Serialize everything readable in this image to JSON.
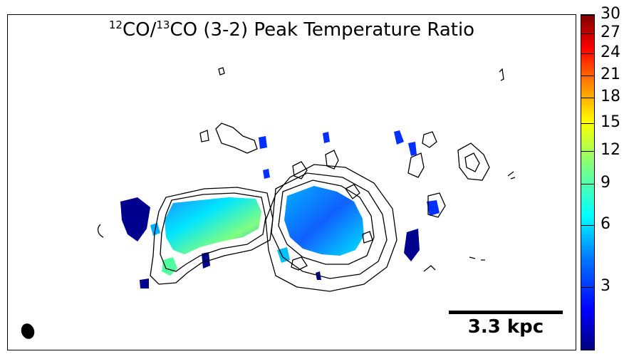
{
  "title": {
    "iso1": "12",
    "part1": "CO/",
    "iso2": "13",
    "part2": "CO (3-2) Peak Temperature Ratio"
  },
  "scale_bar": {
    "label": "3.3 kpc"
  },
  "colorbar": {
    "ticks": [
      {
        "label": "30",
        "value": 30,
        "frac": 0.0
      },
      {
        "label": "27",
        "value": 27,
        "frac": 0.055
      },
      {
        "label": "24",
        "value": 24,
        "frac": 0.115
      },
      {
        "label": "21",
        "value": 21,
        "frac": 0.18
      },
      {
        "label": "18",
        "value": 18,
        "frac": 0.246
      },
      {
        "label": "15",
        "value": 15,
        "frac": 0.322
      },
      {
        "label": "12",
        "value": 12,
        "frac": 0.404
      },
      {
        "label": "9",
        "value": 9,
        "frac": 0.502
      },
      {
        "label": "6",
        "value": 6,
        "frac": 0.624
      },
      {
        "label": "3",
        "value": 3,
        "frac": 0.81
      }
    ],
    "colors": [
      "#00007f",
      "#0000ff",
      "#007fff",
      "#00ffff",
      "#7fff7f",
      "#ffff00",
      "#ff7f00",
      "#ff0000",
      "#7f0000"
    ]
  }
}
